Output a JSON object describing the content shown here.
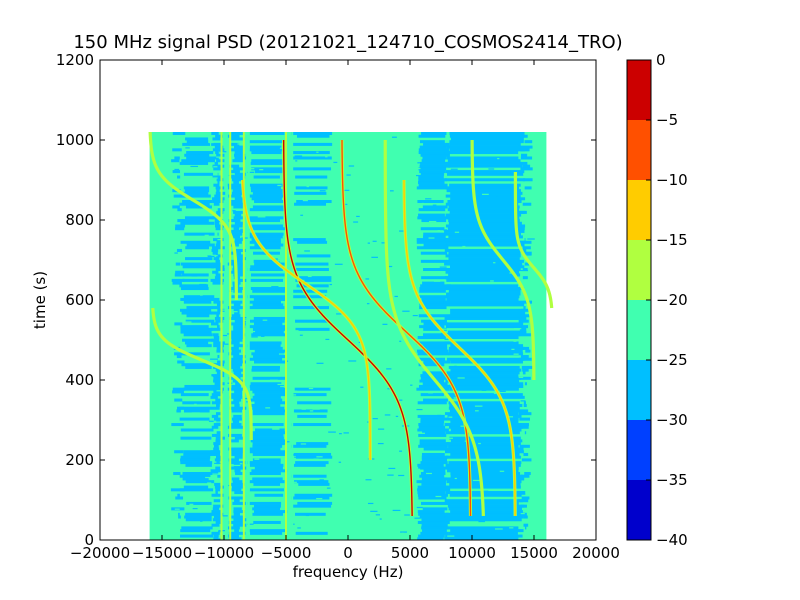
{
  "chart_data": {
    "type": "heatmap",
    "title": "150 MHz signal PSD (20121021_124710_COSMOS2414_TRO)",
    "xlabel": "frequency (Hz)",
    "ylabel": "time (s)",
    "xlim": [
      -20000,
      20000
    ],
    "ylim": [
      0,
      1200
    ],
    "x_ticks": [
      -20000,
      -15000,
      -10000,
      -5000,
      0,
      5000,
      10000,
      15000,
      20000
    ],
    "y_ticks": [
      0,
      200,
      400,
      600,
      800,
      1000,
      1200
    ],
    "data_extent": {
      "x": [
        -16000,
        16000
      ],
      "y": [
        0,
        1020
      ]
    },
    "grid": false,
    "colorbar": {
      "range": [
        -40,
        0
      ],
      "ticks": [
        0,
        -5,
        -10,
        -15,
        -20,
        -25,
        -30,
        -35,
        -40
      ],
      "levels": [
        {
          "min": -40,
          "max": -35,
          "color": "#0000cc"
        },
        {
          "min": -35,
          "max": -30,
          "color": "#0040ff"
        },
        {
          "min": -30,
          "max": -25,
          "color": "#00bfff"
        },
        {
          "min": -25,
          "max": -20,
          "color": "#40ffb0"
        },
        {
          "min": -20,
          "max": -15,
          "color": "#b0ff40"
        },
        {
          "min": -15,
          "max": -10,
          "color": "#ffcc00"
        },
        {
          "min": -10,
          "max": -5,
          "color": "#ff5000"
        },
        {
          "min": -5,
          "max": 0,
          "color": "#cc0000"
        }
      ]
    },
    "doppler_traces": [
      {
        "center_x": 0,
        "t0": 500,
        "half_span_x": 5200,
        "top_y": 1000,
        "bottom_y": 60,
        "peak_color": "#cc0000"
      },
      {
        "center_x": 4700,
        "t0": 520,
        "half_span_x": 5200,
        "top_y": 1000,
        "bottom_y": 60,
        "peak_color": "#ff5000"
      },
      {
        "center_x": -3400,
        "t0": 640,
        "half_span_x": 5200,
        "top_y": 900,
        "bottom_y": 200,
        "peak_color": "#ffcc00"
      },
      {
        "center_x": 9000,
        "t0": 480,
        "half_span_x": 4500,
        "top_y": 900,
        "bottom_y": 60,
        "peak_color": "#ffcc00"
      },
      {
        "center_x": -11800,
        "t0": 450,
        "half_span_x": 4000,
        "top_y": 580,
        "bottom_y": 250,
        "peak_color": "#b0ff40"
      },
      {
        "center_x": -12500,
        "t0": 850,
        "half_span_x": 3500,
        "top_y": 1020,
        "bottom_y": 600,
        "peak_color": "#b0ff40"
      },
      {
        "center_x": 15000,
        "t0": 680,
        "half_span_x": 1500,
        "top_y": 920,
        "bottom_y": 580,
        "peak_color": "#b0ff40"
      },
      {
        "center_x": 12500,
        "t0": 700,
        "half_span_x": 2500,
        "top_y": 1000,
        "bottom_y": 400,
        "peak_color": "#b0ff40"
      },
      {
        "center_x": 7000,
        "t0": 400,
        "half_span_x": 4000,
        "top_y": 1000,
        "bottom_y": 60,
        "peak_color": "#b0ff40"
      }
    ],
    "vertical_lines": [
      {
        "x": -10200,
        "color": "#b0ff40"
      },
      {
        "x": -9500,
        "color": "#b0ff40"
      },
      {
        "x": -8400,
        "color": "#b0ff40"
      },
      {
        "x": -8000,
        "color": "#40ffb0"
      },
      {
        "x": -5000,
        "color": "#b0ff40"
      },
      {
        "x": -4500,
        "color": "#40ffb0"
      }
    ]
  }
}
